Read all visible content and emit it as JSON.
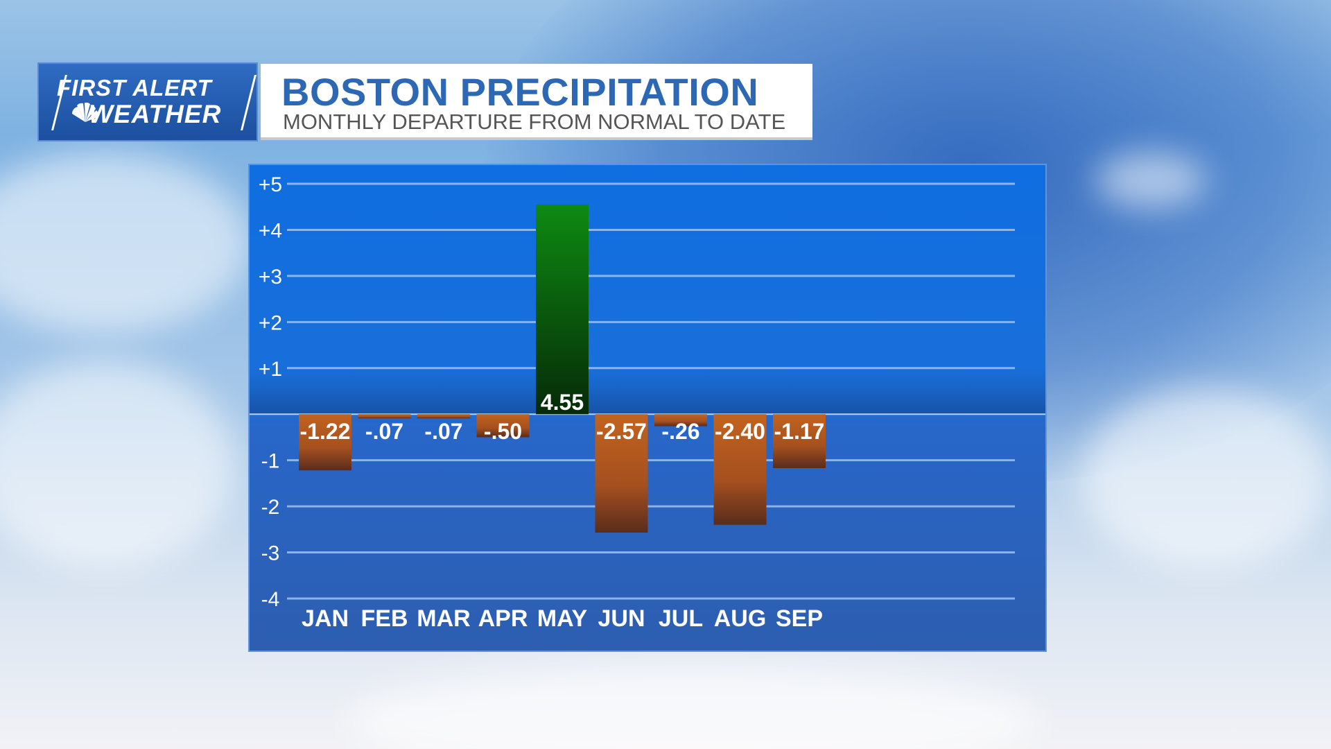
{
  "logo": {
    "line1": "FIRST ALERT",
    "line2": "WEATHER",
    "icon": "peacock-icon"
  },
  "header": {
    "title": "BOSTON PRECIPITATION",
    "subtitle": "MONTHLY DEPARTURE FROM NORMAL TO DATE"
  },
  "colors": {
    "positive_top": "#0e8a12",
    "positive_bottom": "#062a08",
    "negative_top": "#c2631f",
    "negative_bottom": "#5a2c1c",
    "title": "#2d68b5"
  },
  "chart_data": {
    "type": "bar",
    "title": "BOSTON PRECIPITATION",
    "subtitle": "MONTHLY DEPARTURE FROM NORMAL TO DATE",
    "categories": [
      "JAN",
      "FEB",
      "MAR",
      "APR",
      "MAY",
      "JUN",
      "JUL",
      "AUG",
      "SEP"
    ],
    "values": [
      -1.22,
      -0.07,
      -0.07,
      -0.5,
      4.55,
      -2.57,
      -0.26,
      -2.4,
      -1.17
    ],
    "value_labels": [
      "-1.22",
      "-.07",
      "-.07",
      "-.50",
      "4.55",
      "-2.57",
      "-.26",
      "-2.40",
      "-1.17"
    ],
    "y_ticks": [
      5,
      4,
      3,
      2,
      1,
      -1,
      -2,
      -3,
      -4
    ],
    "y_tick_labels": [
      "+5",
      "+4",
      "+3",
      "+2",
      "+1",
      "-1",
      "-2",
      "-3",
      "-4"
    ],
    "ylim": [
      -4,
      5
    ],
    "grid": true,
    "xlabel": "",
    "ylabel": ""
  }
}
